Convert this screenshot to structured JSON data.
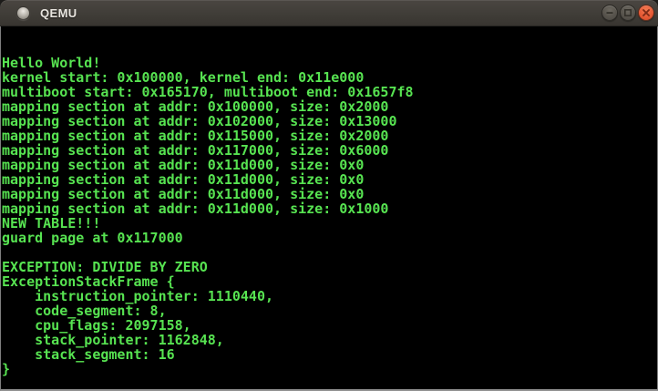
{
  "window": {
    "title": "QEMU",
    "titlebar_bg": "#403d38",
    "title_color": "#e8e5df",
    "controls": [
      {
        "name": "minimize",
        "glyph": "−",
        "color": "#57534c"
      },
      {
        "name": "maximize",
        "glyph": "□",
        "color": "#57534c"
      },
      {
        "name": "close",
        "glyph": "✕",
        "color": "#e65a35"
      }
    ]
  },
  "terminal": {
    "bg": "#000000",
    "fg": "#57e351",
    "columns": 80,
    "rows": 25,
    "lines": [
      "Hello World!",
      "kernel start: 0x100000, kernel end: 0x11e000",
      "multiboot start: 0x165170, multiboot end: 0x1657f8",
      "mapping section at addr: 0x100000, size: 0x2000",
      "mapping section at addr: 0x102000, size: 0x13000",
      "mapping section at addr: 0x115000, size: 0x2000",
      "mapping section at addr: 0x117000, size: 0x6000",
      "mapping section at addr: 0x11d000, size: 0x0",
      "mapping section at addr: 0x11d000, size: 0x0",
      "mapping section at addr: 0x11d000, size: 0x0",
      "mapping section at addr: 0x11d000, size: 0x1000",
      "NEW TABLE!!!",
      "guard page at 0x117000",
      "",
      "EXCEPTION: DIVIDE BY ZERO",
      "ExceptionStackFrame {",
      "    instruction_pointer: 1110440,",
      "    code_segment: 8,",
      "    cpu_flags: 2097158,",
      "    stack_pointer: 1162848,",
      "    stack_segment: 16",
      "}"
    ]
  }
}
